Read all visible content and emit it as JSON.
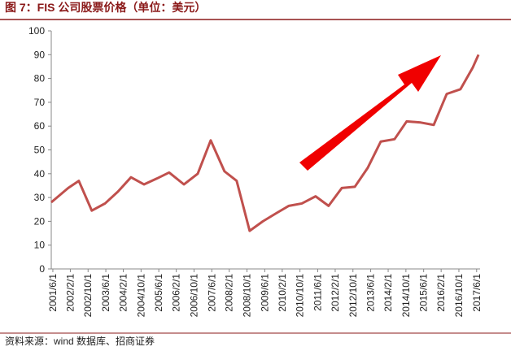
{
  "chart_data": {
    "type": "line",
    "title": "图 7：FIS 公司股票价格（单位：美元）",
    "source": "资料来源：wind 数据库、招商证券",
    "x": [
      2001.36,
      2002.0,
      2002.4,
      2002.89,
      2003.39,
      2003.88,
      2004.37,
      2004.86,
      2005.35,
      2005.81,
      2006.37,
      2006.89,
      2007.38,
      2007.9,
      2008.36,
      2008.85,
      2009.35,
      2009.87,
      2010.33,
      2010.82,
      2011.34,
      2011.83,
      2012.33,
      2012.82,
      2013.31,
      2013.8,
      2014.32,
      2014.78,
      2015.31,
      2015.8,
      2016.29,
      2016.81,
      2017.27,
      2017.49
    ],
    "series": [
      {
        "color": "#c0504d",
        "values": [
          28,
          34,
          37,
          24.5,
          27.5,
          32.5,
          38.5,
          35.5,
          38,
          40.5,
          35.5,
          40,
          54,
          41,
          37,
          16,
          20,
          23.5,
          26.5,
          27.5,
          30.5,
          26.5,
          34,
          34.5,
          42.5,
          53.5,
          54.5,
          62,
          61.5,
          60.5,
          73.5,
          75.5,
          84.5,
          90
        ]
      }
    ],
    "xlim": [
      2001.36,
      2017.55
    ],
    "xticks": [
      {
        "value": 2001.42,
        "label": "2001/6/1"
      },
      {
        "value": 2002.08,
        "label": "2002/2/1"
      },
      {
        "value": 2002.75,
        "label": "2002/10/1"
      },
      {
        "value": 2003.42,
        "label": "2003/6/1"
      },
      {
        "value": 2004.08,
        "label": "2004/2/1"
      },
      {
        "value": 2004.75,
        "label": "2004/10/1"
      },
      {
        "value": 2005.42,
        "label": "2005/6/1"
      },
      {
        "value": 2006.08,
        "label": "2006/2/1"
      },
      {
        "value": 2006.75,
        "label": "2006/10/1"
      },
      {
        "value": 2007.42,
        "label": "2007/6/1"
      },
      {
        "value": 2008.08,
        "label": "2008/2/1"
      },
      {
        "value": 2008.75,
        "label": "2008/10/1"
      },
      {
        "value": 2009.42,
        "label": "2009/6/1"
      },
      {
        "value": 2010.08,
        "label": "2010/2/1"
      },
      {
        "value": 2010.75,
        "label": "2010/10/1"
      },
      {
        "value": 2011.42,
        "label": "2011/6/1"
      },
      {
        "value": 2012.08,
        "label": "2012/2/1"
      },
      {
        "value": 2012.75,
        "label": "2012/10/1"
      },
      {
        "value": 2013.42,
        "label": "2013/6/1"
      },
      {
        "value": 2014.08,
        "label": "2014/2/1"
      },
      {
        "value": 2014.75,
        "label": "2014/10/1"
      },
      {
        "value": 2015.42,
        "label": "2015/6/1"
      },
      {
        "value": 2016.08,
        "label": "2016/2/1"
      },
      {
        "value": 2016.75,
        "label": "2016/10/1"
      },
      {
        "value": 2017.42,
        "label": "2017/6/1"
      }
    ],
    "ylim": [
      0,
      100
    ],
    "yticks": [
      0,
      10,
      20,
      30,
      40,
      50,
      60,
      70,
      80,
      90,
      100
    ],
    "grid": false
  }
}
